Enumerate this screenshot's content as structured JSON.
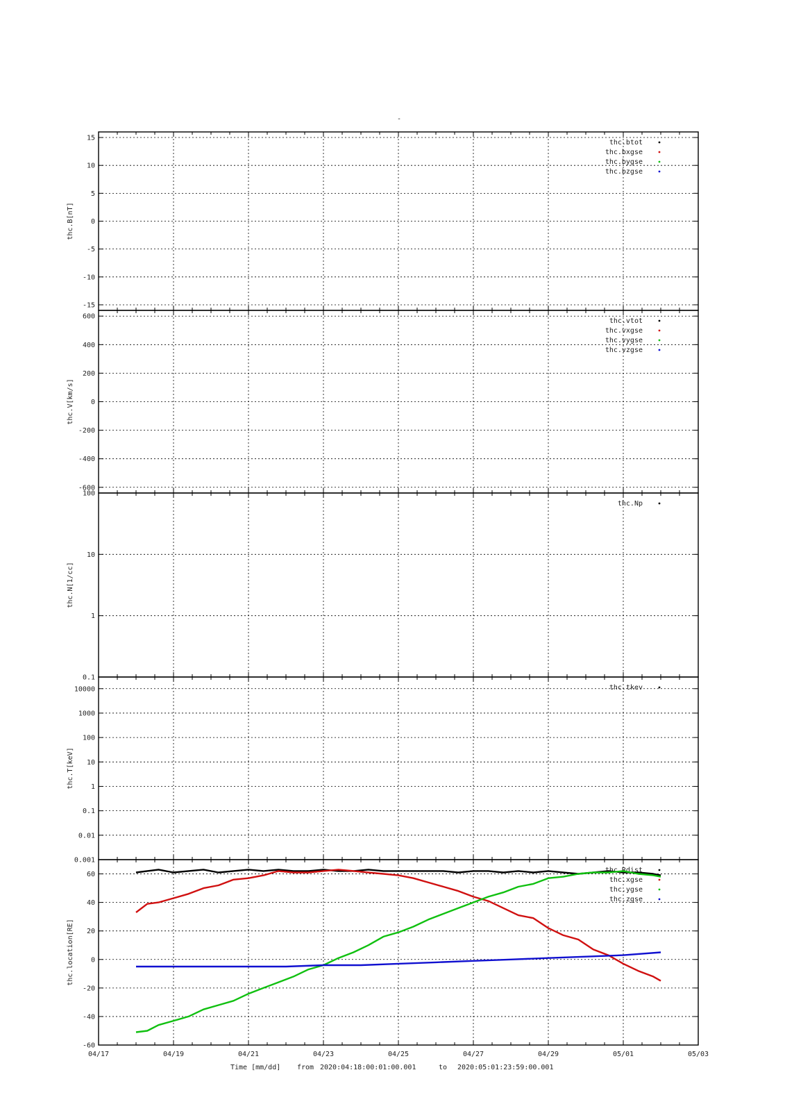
{
  "page_title": "-",
  "footer": {
    "time_label": "Time [mm/dd]",
    "from_label": "from",
    "from_value": "2020:04:18:00:01:00.001",
    "to_label": "to",
    "to_value": "2020:05:01:23:59:00.001"
  },
  "colors": {
    "black": "#000000",
    "red": "#d01010",
    "green": "#10c010",
    "blue": "#1010d0"
  },
  "chart_data": [
    {
      "type": "scatter",
      "ylabel": "thc.B[nT]",
      "ylim": [
        -16,
        16
      ],
      "yscale": "linear",
      "yticks": [
        15,
        10,
        5,
        0,
        -5,
        -10,
        -15
      ],
      "legend_position": "top-right",
      "series": [
        {
          "name": "thc.btot",
          "color": "#000000"
        },
        {
          "name": "thc.bxgse",
          "color": "#d01010"
        },
        {
          "name": "thc.bygse",
          "color": "#10c010"
        },
        {
          "name": "thc.bzgse",
          "color": "#1010d0"
        }
      ]
    },
    {
      "type": "scatter",
      "ylabel": "thc.V[km/s]",
      "ylim": [
        -640,
        640
      ],
      "yscale": "linear",
      "yticks": [
        600,
        400,
        200,
        0,
        -200,
        -400,
        -600
      ],
      "legend_position": "top-right",
      "series": [
        {
          "name": "thc.vtot",
          "color": "#000000"
        },
        {
          "name": "thc.vxgse",
          "color": "#d01010"
        },
        {
          "name": "thc.vygse",
          "color": "#10c010"
        },
        {
          "name": "thc.vzgse",
          "color": "#1010d0"
        }
      ]
    },
    {
      "type": "scatter",
      "ylabel": "thc.N[1/cc]",
      "ylim": [
        0.1,
        100
      ],
      "yscale": "log",
      "yticks": [
        100,
        10,
        1,
        0.1
      ],
      "legend_position": "top-right",
      "series": [
        {
          "name": "thc.Np",
          "color": "#000000"
        }
      ]
    },
    {
      "type": "scatter",
      "ylabel": "thc.T[keV]",
      "ylim": [
        0.001,
        30000
      ],
      "yscale": "log",
      "yticks": [
        10000,
        1000,
        100,
        10,
        1,
        0.1,
        0.01,
        0.001
      ],
      "yticklabels": [
        "10000",
        "1000",
        "100",
        "10",
        "1",
        "0.1",
        "0.01",
        "0.001"
      ],
      "legend_position": "top-right",
      "series": [
        {
          "name": "thc.tkev",
          "color": "#000000"
        }
      ]
    },
    {
      "type": "line",
      "ylabel": "thc.location[RE]",
      "ylim": [
        -60,
        70
      ],
      "yscale": "linear",
      "yticks": [
        60,
        40,
        20,
        0,
        -20,
        -40,
        -60
      ],
      "legend_position": "top-right",
      "x_unit": "day offset from 04/17",
      "xlim": [
        0,
        16
      ],
      "xticks": [
        0,
        2,
        4,
        6,
        8,
        10,
        12,
        14,
        16
      ],
      "xticklabels": [
        "04/17",
        "04/19",
        "04/21",
        "04/23",
        "04/25",
        "04/27",
        "04/29",
        "05/01",
        "05/03"
      ],
      "series": [
        {
          "name": "thc.Rdist",
          "color": "#000000",
          "x": [
            1,
            1.3,
            1.6,
            2,
            2.4,
            2.8,
            3.2,
            3.6,
            4.0,
            4.4,
            4.8,
            5.2,
            5.6,
            6.0,
            6.4,
            6.8,
            7.2,
            7.6,
            8.0,
            8.4,
            8.8,
            9.2,
            9.6,
            10.0,
            10.4,
            10.8,
            11.2,
            11.6,
            12.0,
            12.4,
            12.8,
            13.2,
            13.6,
            14.0,
            14.4,
            14.8,
            15.0
          ],
          "y": [
            61,
            62,
            63,
            61,
            62,
            63,
            61,
            62,
            63,
            62,
            63,
            62,
            62,
            63,
            62,
            62,
            63,
            62,
            62,
            62,
            62,
            62,
            61,
            62,
            62,
            61,
            62,
            61,
            62,
            61,
            60,
            61,
            62,
            61,
            61,
            60,
            59
          ]
        },
        {
          "name": "thc.xgse",
          "color": "#d01010",
          "x": [
            1,
            1.3,
            1.6,
            2.0,
            2.4,
            2.8,
            3.2,
            3.6,
            4.0,
            4.4,
            4.8,
            5.2,
            5.6,
            6.0,
            6.4,
            6.8,
            7.2,
            7.6,
            8.0,
            8.4,
            8.8,
            9.2,
            9.6,
            10.0,
            10.4,
            10.8,
            11.2,
            11.6,
            12.0,
            12.4,
            12.8,
            13.2,
            13.6,
            14.0,
            14.4,
            14.8,
            15.0
          ],
          "y": [
            33,
            39,
            40,
            43,
            46,
            50,
            52,
            56,
            57,
            59,
            62,
            61,
            61,
            62,
            63,
            62,
            61,
            60,
            59,
            57,
            54,
            51,
            48,
            44,
            41,
            36,
            31,
            29,
            22,
            17,
            14,
            7,
            3,
            -3,
            -8,
            -12,
            -15
          ]
        },
        {
          "name": "thc.ygse",
          "color": "#10c010",
          "x": [
            1,
            1.3,
            1.6,
            2.0,
            2.4,
            2.8,
            3.2,
            3.6,
            4.0,
            4.4,
            4.8,
            5.2,
            5.6,
            6.0,
            6.4,
            6.8,
            7.2,
            7.6,
            8.0,
            8.4,
            8.8,
            9.2,
            9.6,
            10.0,
            10.4,
            10.8,
            11.2,
            11.6,
            12.0,
            12.4,
            12.8,
            13.2,
            13.6,
            14.0,
            14.4,
            14.8,
            15.0
          ],
          "y": [
            -51,
            -50,
            -46,
            -43,
            -40,
            -35,
            -32,
            -29,
            -24,
            -20,
            -16,
            -12,
            -7,
            -4,
            1,
            5,
            10,
            16,
            19,
            23,
            28,
            32,
            36,
            40,
            44,
            47,
            51,
            53,
            57,
            58,
            60,
            61,
            61,
            62,
            60,
            59,
            58
          ]
        },
        {
          "name": "thc.zgse",
          "color": "#1010d0",
          "x": [
            1,
            2,
            3,
            4,
            5,
            6,
            7,
            8,
            9,
            10,
            11,
            12,
            13,
            14,
            15
          ],
          "y": [
            -5,
            -5,
            -5,
            -5,
            -5,
            -4,
            -4,
            -3,
            -2,
            -1,
            0,
            1,
            2,
            3,
            5
          ]
        }
      ]
    }
  ]
}
